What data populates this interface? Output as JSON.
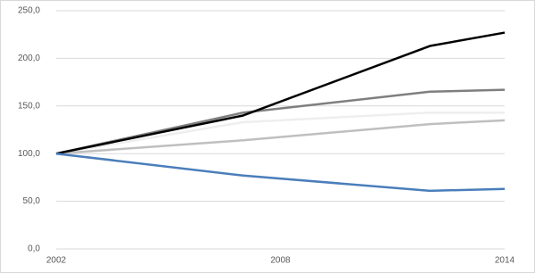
{
  "chart_data": {
    "type": "line",
    "x": [
      2002,
      2007,
      2012,
      2014
    ],
    "xlim": [
      2002,
      2014
    ],
    "xticks": [
      2002,
      2008,
      2014
    ],
    "ylim": [
      0,
      250
    ],
    "yticks": [
      {
        "value": 0,
        "label": "0,0"
      },
      {
        "value": 50,
        "label": "50,0"
      },
      {
        "value": 100,
        "label": "100,0"
      },
      {
        "value": 150,
        "label": "150,0"
      },
      {
        "value": 200,
        "label": "200,0"
      },
      {
        "value": 250,
        "label": "250,0"
      }
    ],
    "grid": true,
    "series": [
      {
        "color": "#eeeeee",
        "values": [
          100,
          133,
          143,
          143
        ]
      },
      {
        "color": "#bfbfbf",
        "values": [
          100,
          114,
          131,
          135
        ]
      },
      {
        "color": "#7f7f7f",
        "values": [
          100,
          143,
          165,
          167
        ]
      },
      {
        "color": "#000000",
        "values": [
          100,
          140,
          213,
          227
        ]
      },
      {
        "color": "#4a7ebb",
        "values": [
          100,
          77,
          61,
          63
        ]
      }
    ]
  }
}
